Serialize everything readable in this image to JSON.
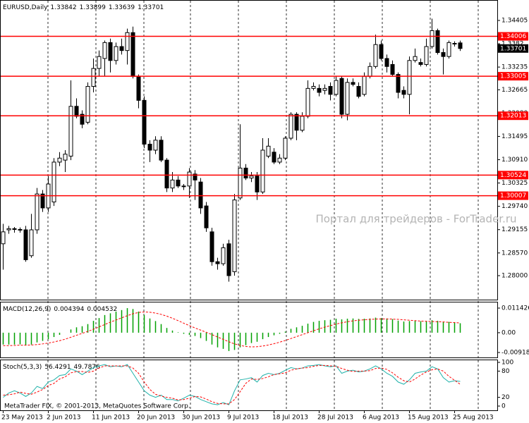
{
  "chart_data": [
    {
      "type": "candlestick",
      "title": "EURUSD,Daily",
      "up_color": "#ffffff",
      "down_color": "#000000",
      "wick_color": "#000000",
      "open": [
        1.288,
        1.2915,
        1.2918,
        1.2916,
        1.2915,
        1.285,
        1.2915,
        1.3005,
        1.297,
        1.2985,
        1.3085,
        1.309,
        1.31,
        1.3225,
        1.3205,
        1.3185,
        1.3275,
        1.332,
        1.3345,
        1.3385,
        1.334,
        1.3375,
        1.3365,
        1.341,
        1.33,
        1.324,
        1.313,
        1.3115,
        1.314,
        1.309,
        1.302,
        1.304,
        1.3025,
        1.3025,
        1.3055,
        1.3035,
        1.2975,
        1.291,
        1.2835,
        1.283,
        1.288,
        1.281,
        1.2995,
        1.307,
        1.3045,
        1.305,
        1.301,
        1.31,
        1.311,
        1.3085,
        1.3095,
        1.3145,
        1.3205,
        1.3165,
        1.32,
        1.327,
        1.327,
        1.3265,
        1.3275,
        1.3255,
        1.3295,
        1.3205,
        1.3285,
        1.3275,
        1.3255,
        1.33,
        1.3325,
        1.338,
        1.3345,
        1.333,
        1.3305,
        1.3265,
        1.3255,
        1.334,
        1.3335,
        1.333,
        1.3375,
        1.3415,
        1.336,
        1.335,
        1.3382,
        1.33842
      ],
      "high": [
        1.293,
        1.2925,
        1.2922,
        1.2921,
        1.2925,
        1.2955,
        1.302,
        1.3015,
        1.305,
        1.3095,
        1.311,
        1.3115,
        1.329,
        1.3245,
        1.3215,
        1.3285,
        1.3345,
        1.3365,
        1.339,
        1.3395,
        1.3385,
        1.3395,
        1.342,
        1.3425,
        1.3305,
        1.325,
        1.314,
        1.315,
        1.315,
        1.3095,
        1.306,
        1.305,
        1.303,
        1.307,
        1.3065,
        1.3045,
        1.2985,
        1.292,
        1.2845,
        1.288,
        1.289,
        1.3005,
        1.318,
        1.308,
        1.306,
        1.306,
        1.3145,
        1.3145,
        1.312,
        1.3105,
        1.315,
        1.321,
        1.321,
        1.321,
        1.329,
        1.3285,
        1.328,
        1.328,
        1.3285,
        1.33,
        1.33,
        1.3295,
        1.3295,
        1.3285,
        1.331,
        1.3335,
        1.3405,
        1.339,
        1.3355,
        1.334,
        1.331,
        1.3275,
        1.335,
        1.337,
        1.3345,
        1.3395,
        1.3445,
        1.342,
        1.337,
        1.339,
        1.3388,
        1.33899
      ],
      "low": [
        1.2815,
        1.2905,
        1.2908,
        1.2908,
        1.2835,
        1.2845,
        1.2905,
        1.296,
        1.296,
        1.2975,
        1.3075,
        1.306,
        1.309,
        1.3195,
        1.317,
        1.318,
        1.326,
        1.33,
        1.33,
        1.331,
        1.333,
        1.3355,
        1.333,
        1.3295,
        1.322,
        1.312,
        1.3085,
        1.3105,
        1.3085,
        1.301,
        1.301,
        1.302,
        1.3015,
        1.2995,
        1.299,
        1.2955,
        1.291,
        1.2825,
        1.2815,
        1.2825,
        1.2785,
        1.28,
        1.299,
        1.304,
        1.3035,
        1.299,
        1.3005,
        1.3095,
        1.308,
        1.308,
        1.309,
        1.314,
        1.314,
        1.316,
        1.3195,
        1.3265,
        1.325,
        1.3255,
        1.324,
        1.325,
        1.3195,
        1.319,
        1.3275,
        1.3245,
        1.325,
        1.3295,
        1.332,
        1.334,
        1.331,
        1.33,
        1.3245,
        1.3245,
        1.3205,
        1.3335,
        1.3325,
        1.3325,
        1.337,
        1.3355,
        1.3305,
        1.3345,
        1.3375,
        1.33639
      ],
      "close": [
        1.291,
        1.2918,
        1.2916,
        1.2915,
        1.284,
        1.2915,
        1.3005,
        1.297,
        1.303,
        1.3085,
        1.3095,
        1.3105,
        1.3225,
        1.32,
        1.318,
        1.3275,
        1.332,
        1.335,
        1.3385,
        1.334,
        1.3375,
        1.3365,
        1.341,
        1.33,
        1.324,
        1.313,
        1.3115,
        1.314,
        1.309,
        1.302,
        1.304,
        1.3025,
        1.3025,
        1.306,
        1.304,
        1.297,
        1.292,
        1.2835,
        1.283,
        1.287,
        1.28,
        1.299,
        1.307,
        1.3045,
        1.305,
        1.301,
        1.3115,
        1.3125,
        1.3085,
        1.3095,
        1.3145,
        1.3205,
        1.3165,
        1.32,
        1.327,
        1.3275,
        1.326,
        1.327,
        1.3255,
        1.329,
        1.3205,
        1.3285,
        1.328,
        1.325,
        1.33,
        1.3325,
        1.338,
        1.3345,
        1.3325,
        1.3305,
        1.326,
        1.3255,
        1.334,
        1.335,
        1.333,
        1.3375,
        1.3415,
        1.336,
        1.335,
        1.3385,
        1.3383,
        1.33701
      ],
      "ylim": [
        1.27434,
        1.34865
      ],
      "yticks": [
        1.34405,
        1.3382,
        1.33235,
        1.32665,
        {
          "value": 1.3208,
          "label": "1.32080"
        },
        1.31495,
        {
          "value": 1.3091,
          "label": "1.30910"
        },
        1.30325,
        {
          "value": 1.2974,
          "label": "1.29740"
        },
        1.29155,
        {
          "value": 1.2857,
          "label": "1.28570"
        },
        {
          "value": 1.28,
          "label": "1.28000"
        }
      ],
      "xticks": [
        {
          "value": 0,
          "label": "23 May 2013"
        },
        {
          "value": 8,
          "label": "2 Jun 2013"
        },
        {
          "value": 16,
          "label": "11 Jun 2013"
        },
        {
          "value": 24,
          "label": "20 Jun 2013"
        },
        {
          "value": 32,
          "label": "30 Jun 2013"
        },
        {
          "value": 40,
          "label": "9 Jul 2013"
        },
        {
          "value": 48,
          "label": "18 Jul 2013"
        },
        {
          "value": 56,
          "label": "28 Jul 2013"
        },
        {
          "value": 64,
          "label": "6 Aug 2013"
        },
        {
          "value": 72,
          "label": "15 Aug 2013"
        },
        {
          "value": 80,
          "label": "25 Aug 2013"
        }
      ],
      "levels": {
        "color": "#ff0000",
        "values": [
          1.34006,
          1.33005,
          1.32013,
          1.30524,
          1.30007
        ]
      },
      "watermark": "Портал для трейдеров - ForTrader.ru"
    },
    {
      "type": "macd",
      "title": "MACD(12,26,9)",
      "series": [
        {
          "color": "#00a000",
          "values": [
            -0.0055,
            -0.0055,
            -0.0055,
            -0.0054,
            -0.0058,
            -0.0055,
            -0.0045,
            -0.0038,
            -0.003,
            -0.002,
            -0.001,
            0.0,
            0.0015,
            0.0025,
            0.003,
            0.004,
            0.0055,
            0.0068,
            0.0082,
            0.009,
            0.0098,
            0.0105,
            0.0114,
            0.011,
            0.0098,
            0.0082,
            0.0066,
            0.0054,
            0.004,
            0.0022,
            0.001,
            0.0002,
            -0.0005,
            -0.001,
            -0.0015,
            -0.0025,
            -0.0038,
            -0.0055,
            -0.0068,
            -0.0075,
            -0.0085,
            -0.008,
            -0.0068,
            -0.0058,
            -0.0048,
            -0.0042,
            -0.003,
            -0.002,
            -0.0012,
            -0.0005,
            0.0005,
            0.0018,
            0.0025,
            0.0032,
            0.0042,
            0.005,
            0.0055,
            0.0058,
            0.006,
            0.0065,
            0.0062,
            0.0065,
            0.0066,
            0.0064,
            0.0065,
            0.0066,
            0.007,
            0.0068,
            0.0066,
            0.0063,
            0.0056,
            0.0052,
            0.0054,
            0.0055,
            0.0053,
            0.0054,
            0.0058,
            0.0055,
            0.0051,
            0.005,
            0.0047,
            0.004394
          ]
        },
        {
          "color": "#ff0000",
          "values": [
            -0.006,
            -0.006,
            -0.0059,
            -0.0058,
            -0.0058,
            -0.0057,
            -0.0055,
            -0.0052,
            -0.0048,
            -0.0043,
            -0.0037,
            -0.003,
            -0.0021,
            -0.0012,
            -0.0003,
            0.0006,
            0.0016,
            0.0027,
            0.0038,
            0.0049,
            0.0059,
            0.0069,
            0.0079,
            0.0088,
            0.0094,
            0.0096,
            0.0095,
            0.0091,
            0.0085,
            0.0077,
            0.0067,
            0.0056,
            0.0044,
            0.0033,
            0.0022,
            0.0012,
            0.0002,
            -0.0009,
            -0.002,
            -0.0031,
            -0.0042,
            -0.0052,
            -0.0059,
            -0.0064,
            -0.0066,
            -0.0065,
            -0.0062,
            -0.0057,
            -0.0051,
            -0.0044,
            -0.0036,
            -0.0027,
            -0.0018,
            -0.0009,
            0.0,
            0.0009,
            0.0018,
            0.0026,
            0.0033,
            0.004,
            0.0046,
            0.0051,
            0.0055,
            0.0058,
            0.006,
            0.0062,
            0.0063,
            0.0064,
            0.0064,
            0.0063,
            0.0062,
            0.006,
            0.0058,
            0.0056,
            0.0054,
            0.0053,
            0.0052,
            0.0051,
            0.005,
            0.0048,
            0.0047,
            0.004532
          ]
        }
      ],
      "ylim": [
        -0.009187,
        0.011426
      ],
      "yticks": [
        -0.009187,
        {
          "value": 0,
          "label": "0.00"
        },
        0.011426
      ]
    },
    {
      "type": "line",
      "title": "Stoch(5,3,3)",
      "series": [
        {
          "color": "#20b2aa",
          "values": [
            20,
            30,
            35,
            30,
            22,
            30,
            45,
            40,
            55,
            60,
            70,
            72,
            85,
            80,
            72,
            80,
            88,
            92,
            95,
            90,
            92,
            90,
            95,
            75,
            55,
            35,
            25,
            20,
            25,
            15,
            15,
            12,
            18,
            25,
            22,
            15,
            10,
            5,
            3,
            8,
            3,
            35,
            60,
            62,
            65,
            55,
            70,
            75,
            72,
            75,
            82,
            88,
            85,
            87,
            92,
            93,
            95,
            92,
            90,
            92,
            75,
            80,
            82,
            78,
            80,
            85,
            92,
            85,
            75,
            68,
            55,
            50,
            60,
            75,
            78,
            80,
            90,
            85,
            65,
            55,
            58,
            56.4291
          ]
        },
        {
          "color": "#ff0000",
          "values": [
            25,
            26,
            28,
            32,
            29,
            27,
            32,
            38,
            47,
            52,
            62,
            67,
            76,
            79,
            79,
            77,
            80,
            87,
            92,
            92,
            92,
            92,
            92,
            87,
            75,
            55,
            38,
            27,
            23,
            20,
            18,
            14,
            15,
            18,
            22,
            21,
            16,
            10,
            6,
            5,
            5,
            15,
            33,
            52,
            62,
            61,
            63,
            67,
            72,
            74,
            76,
            82,
            85,
            87,
            88,
            91,
            93,
            93,
            92,
            91,
            86,
            82,
            79,
            80,
            80,
            81,
            86,
            87,
            84,
            76,
            66,
            58,
            55,
            62,
            71,
            78,
            83,
            85,
            80,
            68,
            59,
            49.7876
          ]
        }
      ],
      "ylim": [
        0,
        100
      ],
      "yticks": [
        0,
        20,
        80,
        100
      ],
      "copyright": "MetaTrader FIX, © 2001-2013, MetaQuotes Software Corp."
    }
  ]
}
